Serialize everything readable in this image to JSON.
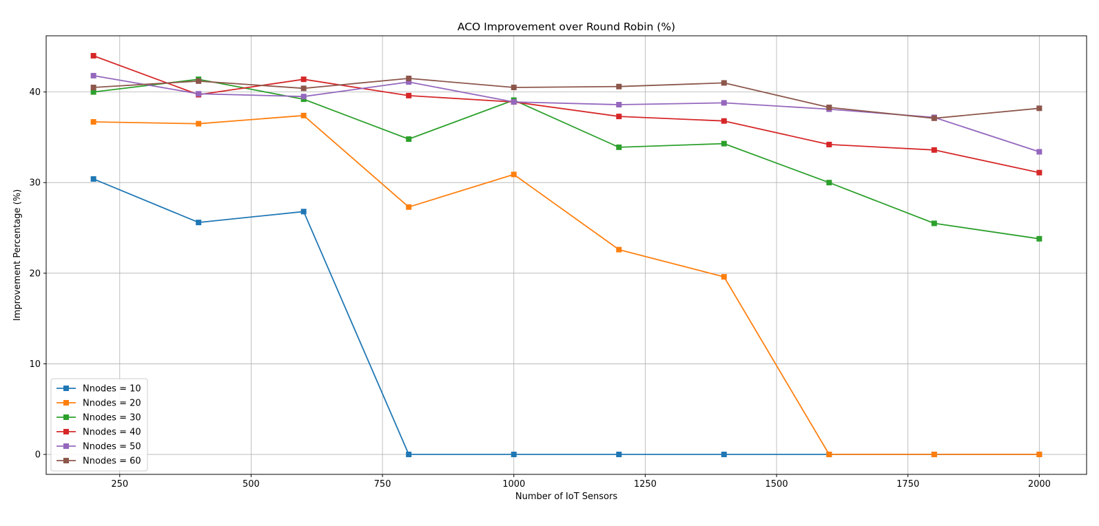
{
  "chart_data": {
    "type": "line",
    "title": "ACO Improvement over Round Robin (%)",
    "xlabel": "Number of IoT Sensors",
    "ylabel": "Improvement Percentage (%)",
    "xlim": [
      110,
      2090
    ],
    "ylim": [
      -2.2,
      46.2
    ],
    "x_ticks": [
      250,
      500,
      750,
      1000,
      1250,
      1500,
      1750,
      2000
    ],
    "y_ticks": [
      0,
      10,
      20,
      30,
      40
    ],
    "grid": true,
    "legend_position": "lower-left",
    "marker": "square",
    "x": [
      200,
      400,
      600,
      800,
      1000,
      1200,
      1400,
      1600,
      1800,
      2000
    ],
    "series": [
      {
        "name": "Nnodes = 10",
        "color": "#1f77b4",
        "values": [
          30.4,
          25.6,
          26.8,
          0.0,
          0.0,
          0.0,
          0.0,
          0.0,
          0.0,
          0.0
        ]
      },
      {
        "name": "Nnodes = 20",
        "color": "#ff7f0e",
        "values": [
          36.7,
          36.5,
          37.4,
          27.3,
          30.9,
          22.6,
          19.6,
          0.0,
          0.0,
          0.0
        ]
      },
      {
        "name": "Nnodes = 30",
        "color": "#2ca02c",
        "values": [
          40.0,
          41.4,
          39.2,
          34.8,
          39.1,
          33.9,
          34.3,
          30.0,
          25.5,
          23.8
        ]
      },
      {
        "name": "Nnodes = 40",
        "color": "#d62728",
        "values": [
          44.0,
          39.7,
          41.4,
          39.6,
          38.9,
          37.3,
          36.8,
          34.2,
          33.6,
          31.1
        ]
      },
      {
        "name": "Nnodes = 50",
        "color": "#9467bd",
        "values": [
          41.8,
          39.8,
          39.5,
          41.1,
          38.9,
          38.6,
          38.8,
          38.1,
          37.2,
          33.4
        ]
      },
      {
        "name": "Nnodes = 60",
        "color": "#8c564b",
        "values": [
          40.5,
          41.2,
          40.4,
          41.5,
          40.5,
          40.6,
          41.0,
          38.3,
          37.1,
          38.2
        ]
      }
    ]
  }
}
